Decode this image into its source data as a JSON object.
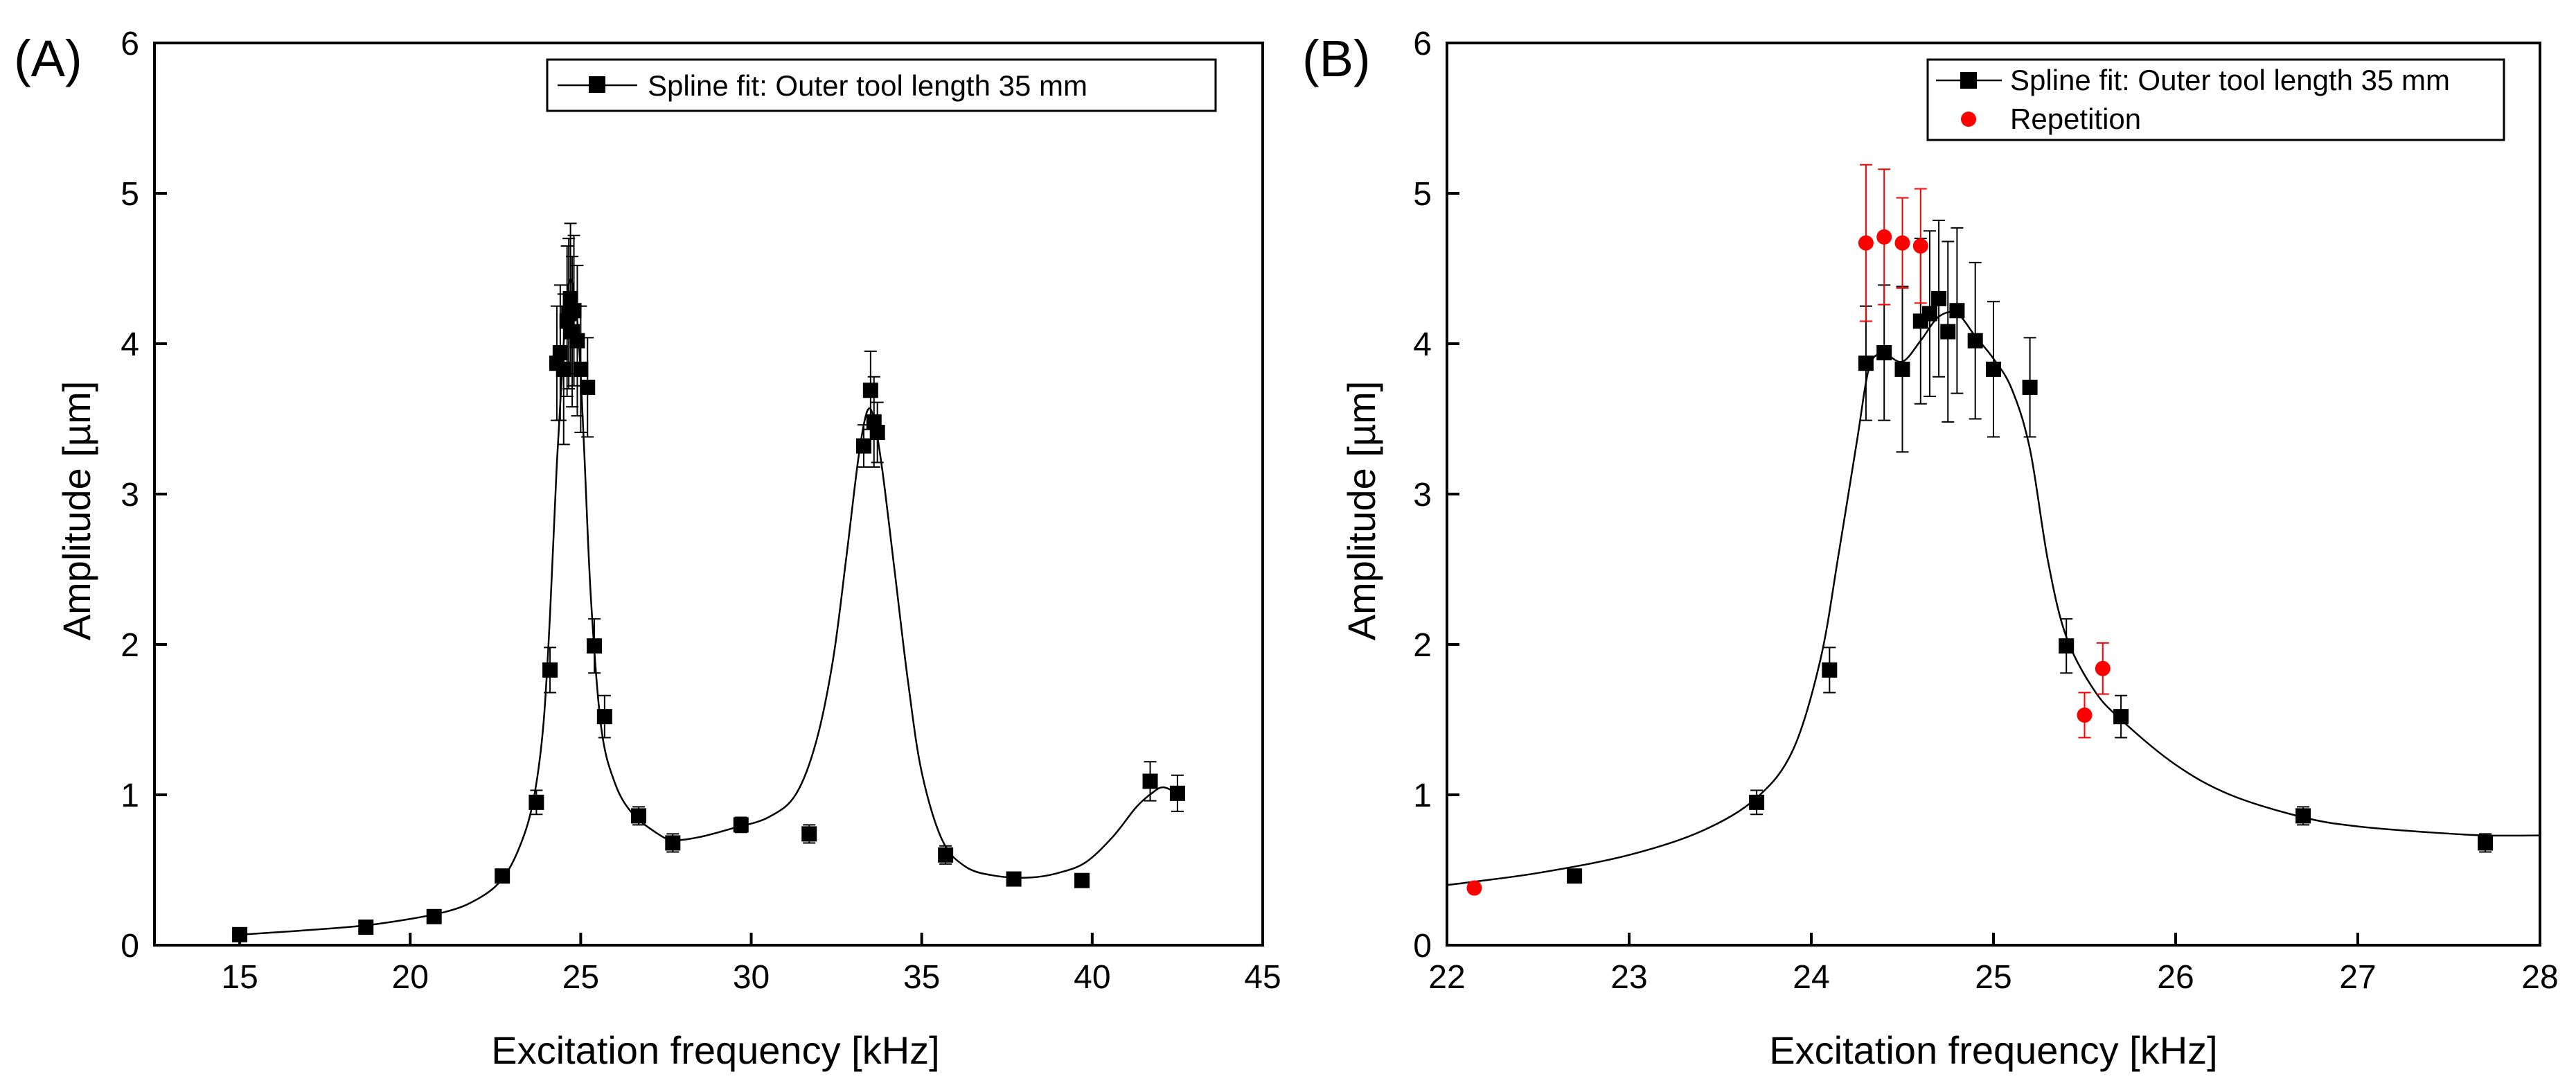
{
  "chart_data": [
    {
      "type": "scatter",
      "panel_label": "(A)",
      "xlabel": "Excitation frequency [kHz]",
      "ylabel": "Amplitude [µm]",
      "xlim": [
        12.5,
        45
      ],
      "ylim": [
        0,
        6
      ],
      "xticks": [
        15,
        20,
        25,
        30,
        35,
        40,
        45
      ],
      "yticks": [
        0,
        1,
        2,
        3,
        4,
        5,
        6
      ],
      "legend_position": "top-right",
      "legend": [
        "Spline fit: Outer tool length 35 mm"
      ],
      "series": [
        {
          "name": "Spline fit: Outer tool length 35 mm",
          "color": "#000000",
          "marker": "square",
          "points": [
            {
              "x": 15.0,
              "y": 0.07,
              "err": 0.02
            },
            {
              "x": 18.7,
              "y": 0.12,
              "err": 0.02
            },
            {
              "x": 20.7,
              "y": 0.19,
              "err": 0.02
            },
            {
              "x": 22.7,
              "y": 0.46,
              "err": 0.03
            },
            {
              "x": 23.7,
              "y": 0.95,
              "err": 0.08
            },
            {
              "x": 24.1,
              "y": 1.83,
              "err": 0.15
            },
            {
              "x": 24.3,
              "y": 3.87,
              "err": 0.38
            },
            {
              "x": 24.4,
              "y": 3.94,
              "err": 0.45
            },
            {
              "x": 24.5,
              "y": 3.83,
              "err": 0.5
            },
            {
              "x": 24.6,
              "y": 4.15,
              "err": 0.5
            },
            {
              "x": 24.65,
              "y": 4.2,
              "err": 0.5
            },
            {
              "x": 24.7,
              "y": 4.3,
              "err": 0.5
            },
            {
              "x": 24.75,
              "y": 4.08,
              "err": 0.5
            },
            {
              "x": 24.8,
              "y": 4.22,
              "err": 0.5
            },
            {
              "x": 24.9,
              "y": 4.02,
              "err": 0.5
            },
            {
              "x": 25.0,
              "y": 3.83,
              "err": 0.42
            },
            {
              "x": 25.2,
              "y": 3.71,
              "err": 0.33
            },
            {
              "x": 25.4,
              "y": 1.99,
              "err": 0.18
            },
            {
              "x": 25.7,
              "y": 1.52,
              "err": 0.14
            },
            {
              "x": 26.7,
              "y": 0.86,
              "err": 0.06
            },
            {
              "x": 27.7,
              "y": 0.68,
              "err": 0.06
            },
            {
              "x": 29.7,
              "y": 0.8,
              "err": 0.05
            },
            {
              "x": 31.7,
              "y": 0.74,
              "err": 0.06
            },
            {
              "x": 33.3,
              "y": 3.32,
              "err": 0.14
            },
            {
              "x": 33.5,
              "y": 3.69,
              "err": 0.26
            },
            {
              "x": 33.6,
              "y": 3.48,
              "err": 0.3
            },
            {
              "x": 33.7,
              "y": 3.41,
              "err": 0.2
            },
            {
              "x": 35.7,
              "y": 0.6,
              "err": 0.06
            },
            {
              "x": 37.7,
              "y": 0.44,
              "err": 0.03
            },
            {
              "x": 39.7,
              "y": 0.43,
              "err": 0.03
            },
            {
              "x": 41.7,
              "y": 1.09,
              "err": 0.13
            },
            {
              "x": 42.5,
              "y": 1.01,
              "err": 0.12
            }
          ],
          "fit_curve": [
            [
              15.0,
              0.07
            ],
            [
              17.0,
              0.1
            ],
            [
              19.0,
              0.14
            ],
            [
              21.0,
              0.22
            ],
            [
              22.0,
              0.31
            ],
            [
              22.7,
              0.44
            ],
            [
              23.2,
              0.65
            ],
            [
              23.6,
              0.95
            ],
            [
              23.9,
              1.45
            ],
            [
              24.1,
              2.2
            ],
            [
              24.3,
              3.2
            ],
            [
              24.5,
              4.0
            ],
            [
              24.65,
              4.4
            ],
            [
              24.8,
              4.35
            ],
            [
              24.95,
              4.0
            ],
            [
              25.1,
              3.3
            ],
            [
              25.3,
              2.3
            ],
            [
              25.6,
              1.45
            ],
            [
              26.0,
              1.08
            ],
            [
              26.5,
              0.88
            ],
            [
              27.2,
              0.75
            ],
            [
              27.7,
              0.7
            ],
            [
              28.5,
              0.72
            ],
            [
              29.5,
              0.78
            ],
            [
              30.5,
              0.85
            ],
            [
              31.3,
              1.0
            ],
            [
              31.9,
              1.35
            ],
            [
              32.4,
              1.9
            ],
            [
              32.8,
              2.6
            ],
            [
              33.15,
              3.25
            ],
            [
              33.4,
              3.55
            ],
            [
              33.6,
              3.5
            ],
            [
              33.85,
              3.15
            ],
            [
              34.2,
              2.5
            ],
            [
              34.6,
              1.75
            ],
            [
              35.0,
              1.15
            ],
            [
              35.6,
              0.7
            ],
            [
              36.3,
              0.52
            ],
            [
              37.2,
              0.46
            ],
            [
              38.2,
              0.45
            ],
            [
              39.0,
              0.48
            ],
            [
              39.8,
              0.55
            ],
            [
              40.6,
              0.72
            ],
            [
              41.3,
              0.92
            ],
            [
              41.8,
              1.02
            ],
            [
              42.1,
              1.05
            ],
            [
              42.5,
              1.01
            ]
          ]
        }
      ]
    },
    {
      "type": "scatter",
      "panel_label": "(B)",
      "xlabel": "Excitation frequency [kHz]",
      "ylabel": "Amplitude [µm]",
      "xlim": [
        22,
        28
      ],
      "ylim": [
        0,
        6
      ],
      "xticks": [
        22,
        23,
        24,
        25,
        26,
        27,
        28
      ],
      "yticks": [
        0,
        1,
        2,
        3,
        4,
        5,
        6
      ],
      "legend_position": "top-right",
      "legend": [
        "Spline fit: Outer tool length 35 mm",
        "Repetition"
      ],
      "series": [
        {
          "name": "Spline fit: Outer tool length 35 mm",
          "color": "#000000",
          "marker": "square",
          "points": [
            {
              "x": 22.7,
              "y": 0.46,
              "err": 0.03
            },
            {
              "x": 23.7,
              "y": 0.95,
              "err": 0.08
            },
            {
              "x": 24.1,
              "y": 1.83,
              "err": 0.15
            },
            {
              "x": 24.3,
              "y": 3.87,
              "err": 0.38
            },
            {
              "x": 24.4,
              "y": 3.94,
              "err": 0.45
            },
            {
              "x": 24.5,
              "y": 3.83,
              "err": 0.55
            },
            {
              "x": 24.6,
              "y": 4.15,
              "err": 0.55
            },
            {
              "x": 24.65,
              "y": 4.2,
              "err": 0.55
            },
            {
              "x": 24.7,
              "y": 4.3,
              "err": 0.52
            },
            {
              "x": 24.75,
              "y": 4.08,
              "err": 0.6
            },
            {
              "x": 24.8,
              "y": 4.22,
              "err": 0.55
            },
            {
              "x": 24.9,
              "y": 4.02,
              "err": 0.52
            },
            {
              "x": 25.0,
              "y": 3.83,
              "err": 0.45
            },
            {
              "x": 25.2,
              "y": 3.71,
              "err": 0.33
            },
            {
              "x": 25.4,
              "y": 1.99,
              "err": 0.18
            },
            {
              "x": 25.7,
              "y": 1.52,
              "err": 0.14
            },
            {
              "x": 26.7,
              "y": 0.86,
              "err": 0.06
            },
            {
              "x": 27.7,
              "y": 0.68,
              "err": 0.06
            }
          ],
          "fit_curve": [
            [
              22.0,
              0.4
            ],
            [
              22.5,
              0.48
            ],
            [
              23.0,
              0.6
            ],
            [
              23.4,
              0.76
            ],
            [
              23.7,
              0.98
            ],
            [
              23.9,
              1.3
            ],
            [
              24.05,
              1.9
            ],
            [
              24.15,
              2.6
            ],
            [
              24.25,
              3.35
            ],
            [
              24.32,
              3.85
            ],
            [
              24.4,
              3.93
            ],
            [
              24.5,
              3.88
            ],
            [
              24.6,
              4.02
            ],
            [
              24.7,
              4.18
            ],
            [
              24.8,
              4.2
            ],
            [
              24.9,
              4.05
            ],
            [
              25.0,
              3.9
            ],
            [
              25.1,
              3.7
            ],
            [
              25.2,
              3.3
            ],
            [
              25.3,
              2.55
            ],
            [
              25.4,
              2.05
            ],
            [
              25.55,
              1.7
            ],
            [
              25.7,
              1.5
            ],
            [
              26.0,
              1.2
            ],
            [
              26.3,
              1.0
            ],
            [
              26.7,
              0.85
            ],
            [
              27.0,
              0.79
            ],
            [
              27.4,
              0.75
            ],
            [
              27.7,
              0.73
            ],
            [
              28.0,
              0.73
            ]
          ]
        },
        {
          "name": "Repetition",
          "color": "#ff0000",
          "marker": "circle",
          "points": [
            {
              "x": 22.15,
              "y": 0.38,
              "err": 0
            },
            {
              "x": 24.3,
              "y": 4.67,
              "err": 0.52
            },
            {
              "x": 24.4,
              "y": 4.71,
              "err": 0.45
            },
            {
              "x": 24.5,
              "y": 4.67,
              "err": 0.3
            },
            {
              "x": 24.6,
              "y": 4.65,
              "err": 0.38
            },
            {
              "x": 25.5,
              "y": 1.53,
              "err": 0.15
            },
            {
              "x": 25.6,
              "y": 1.84,
              "err": 0.17
            }
          ]
        }
      ]
    }
  ]
}
